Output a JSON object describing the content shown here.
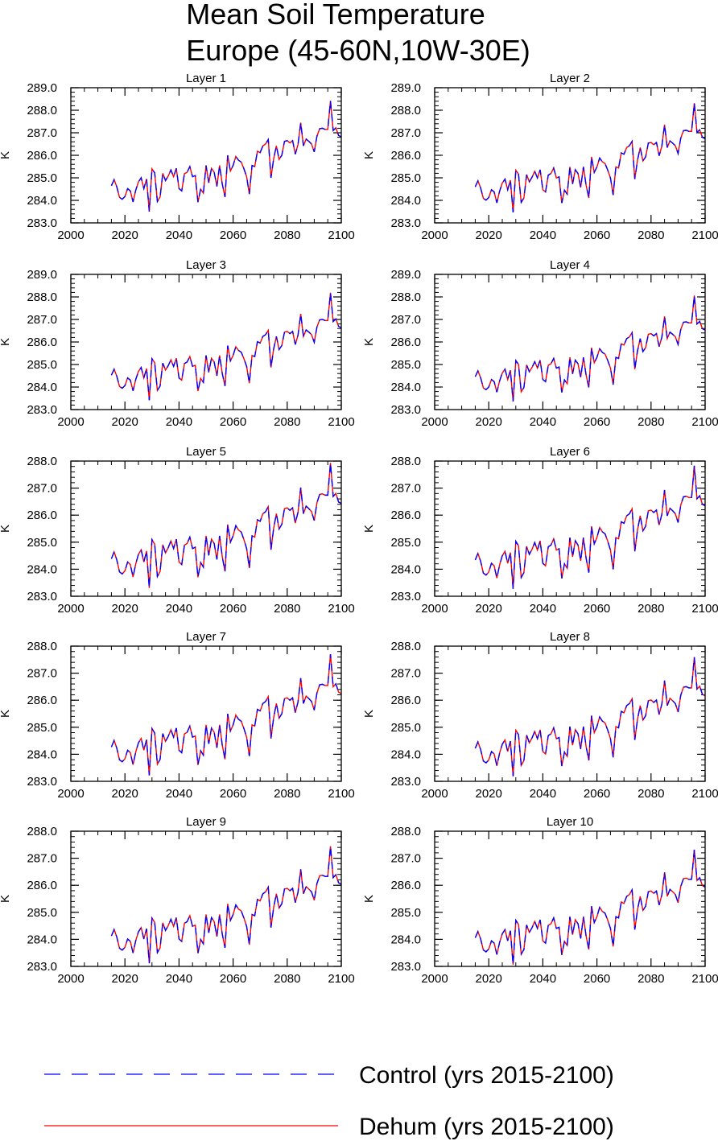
{
  "figure": {
    "title_line1": "Mean Soil Temperature",
    "title_line2": "Europe (45-60N,10W-30E)",
    "legend": [
      {
        "label": "Control (yrs 2015-2100)",
        "color": "#0000ff",
        "dash": true
      },
      {
        "label": "Dehum (yrs 2015-2100)",
        "color": "#ff0000",
        "dash": false
      }
    ]
  },
  "chart_data": [
    {
      "type": "line",
      "title": "Layer 1",
      "ylabel": "K",
      "xlim": [
        2000,
        2100
      ],
      "ylim": [
        283.0,
        289.0
      ],
      "xticks": [
        "2000",
        "2020",
        "2040",
        "2060",
        "2080",
        "2100"
      ],
      "yticks": [
        "283.0",
        "284.0",
        "285.0",
        "286.0",
        "287.0",
        "288.0",
        "289.0"
      ],
      "base_level": 0.0
    },
    {
      "type": "line",
      "title": "Layer 2",
      "ylabel": "K",
      "xlim": [
        2000,
        2100
      ],
      "ylim": [
        283.0,
        289.0
      ],
      "xticks": [
        "2000",
        "2020",
        "2040",
        "2060",
        "2080",
        "2100"
      ],
      "yticks": [
        "283.0",
        "284.0",
        "285.0",
        "286.0",
        "287.0",
        "288.0",
        "289.0"
      ],
      "base_level": -0.06
    },
    {
      "type": "line",
      "title": "Layer 3",
      "ylabel": "K",
      "xlim": [
        2000,
        2100
      ],
      "ylim": [
        283.0,
        289.0
      ],
      "xticks": [
        "2000",
        "2020",
        "2040",
        "2060",
        "2080",
        "2100"
      ],
      "yticks": [
        "283.0",
        "284.0",
        "285.0",
        "286.0",
        "287.0",
        "288.0",
        "289.0"
      ],
      "base_level": -0.14
    },
    {
      "type": "line",
      "title": "Layer 4",
      "ylabel": "K",
      "xlim": [
        2000,
        2100
      ],
      "ylim": [
        283.0,
        289.0
      ],
      "xticks": [
        "2000",
        "2020",
        "2040",
        "2060",
        "2080",
        "2100"
      ],
      "yticks": [
        "283.0",
        "284.0",
        "285.0",
        "286.0",
        "287.0",
        "288.0",
        "289.0"
      ],
      "base_level": -0.22
    },
    {
      "type": "line",
      "title": "Layer 5",
      "ylabel": "K",
      "xlim": [
        2000,
        2100
      ],
      "ylim": [
        283.0,
        288.0
      ],
      "xticks": [
        "2000",
        "2020",
        "2040",
        "2060",
        "2080",
        "2100"
      ],
      "yticks": [
        "283.0",
        "284.0",
        "285.0",
        "286.0",
        "287.0",
        "288.0"
      ],
      "base_level": -0.3
    },
    {
      "type": "line",
      "title": "Layer 6",
      "ylabel": "K",
      "xlim": [
        2000,
        2100
      ],
      "ylim": [
        283.0,
        288.0
      ],
      "xticks": [
        "2000",
        "2020",
        "2040",
        "2060",
        "2080",
        "2100"
      ],
      "yticks": [
        "283.0",
        "284.0",
        "285.0",
        "286.0",
        "287.0",
        "288.0"
      ],
      "base_level": -0.36
    },
    {
      "type": "line",
      "title": "Layer 7",
      "ylabel": "K",
      "xlim": [
        2000,
        2100
      ],
      "ylim": [
        283.0,
        288.0
      ],
      "xticks": [
        "2000",
        "2020",
        "2040",
        "2060",
        "2080",
        "2100"
      ],
      "yticks": [
        "283.0",
        "284.0",
        "285.0",
        "286.0",
        "287.0",
        "288.0"
      ],
      "base_level": -0.44
    },
    {
      "type": "line",
      "title": "Layer 8",
      "ylabel": "K",
      "xlim": [
        2000,
        2100
      ],
      "ylim": [
        283.0,
        288.0
      ],
      "xticks": [
        "2000",
        "2020",
        "2040",
        "2060",
        "2080",
        "2100"
      ],
      "yticks": [
        "283.0",
        "284.0",
        "285.0",
        "286.0",
        "287.0",
        "288.0"
      ],
      "base_level": -0.5
    },
    {
      "type": "line",
      "title": "Layer 9",
      "ylabel": "K",
      "xlim": [
        2000,
        2100
      ],
      "ylim": [
        283.0,
        288.0
      ],
      "xticks": [
        "2000",
        "2020",
        "2040",
        "2060",
        "2080",
        "2100"
      ],
      "yticks": [
        "283.0",
        "284.0",
        "285.0",
        "286.0",
        "287.0",
        "288.0"
      ],
      "base_level": -0.6
    },
    {
      "type": "line",
      "title": "Layer 10",
      "ylabel": "K",
      "xlim": [
        2000,
        2100
      ],
      "ylim": [
        283.0,
        288.0
      ],
      "xticks": [
        "2000",
        "2020",
        "2040",
        "2060",
        "2080",
        "2100"
      ],
      "yticks": [
        "283.0",
        "284.0",
        "285.0",
        "286.0",
        "287.0",
        "288.0"
      ],
      "base_level": -0.68
    }
  ],
  "series_x": [
    2015,
    2016,
    2017,
    2018,
    2019,
    2020,
    2021,
    2022,
    2023,
    2024,
    2025,
    2026,
    2027,
    2028,
    2029,
    2030,
    2031,
    2032,
    2033,
    2034,
    2035,
    2036,
    2037,
    2038,
    2039,
    2040,
    2041,
    2042,
    2043,
    2044,
    2045,
    2046,
    2047,
    2048,
    2049,
    2050,
    2051,
    2052,
    2053,
    2054,
    2055,
    2056,
    2057,
    2058,
    2059,
    2060,
    2061,
    2062,
    2063,
    2064,
    2065,
    2066,
    2067,
    2068,
    2069,
    2070,
    2071,
    2072,
    2073,
    2074,
    2075,
    2076,
    2077,
    2078,
    2079,
    2080,
    2081,
    2082,
    2083,
    2084,
    2085,
    2086,
    2087,
    2088,
    2089,
    2090,
    2091,
    2092,
    2093,
    2094,
    2095,
    2096,
    2097,
    2098,
    2099,
    2100
  ],
  "layer1_values": [
    284.65,
    284.92,
    284.6,
    284.13,
    284.05,
    284.17,
    284.52,
    284.42,
    283.93,
    284.45,
    284.82,
    285.0,
    284.52,
    284.95,
    283.5,
    285.4,
    285.22,
    283.95,
    284.15,
    285.2,
    284.88,
    285.08,
    285.35,
    285.05,
    285.42,
    284.52,
    284.42,
    285.18,
    285.25,
    285.5,
    285.05,
    285.1,
    283.92,
    284.5,
    284.32,
    285.55,
    284.78,
    285.42,
    285.25,
    284.62,
    285.55,
    284.72,
    284.15,
    286.0,
    285.3,
    285.55,
    285.95,
    285.78,
    285.7,
    285.4,
    285.05,
    284.28,
    285.55,
    285.5,
    286.18,
    286.12,
    286.42,
    286.5,
    286.7,
    285.0,
    285.85,
    286.42,
    285.82,
    286.0,
    286.62,
    286.65,
    286.55,
    286.65,
    286.05,
    286.48,
    287.45,
    286.42,
    286.72,
    286.62,
    286.5,
    286.15,
    286.85,
    287.18,
    287.2,
    287.15,
    287.15,
    288.42,
    287.1,
    287.22,
    286.88,
    286.82
  ]
}
